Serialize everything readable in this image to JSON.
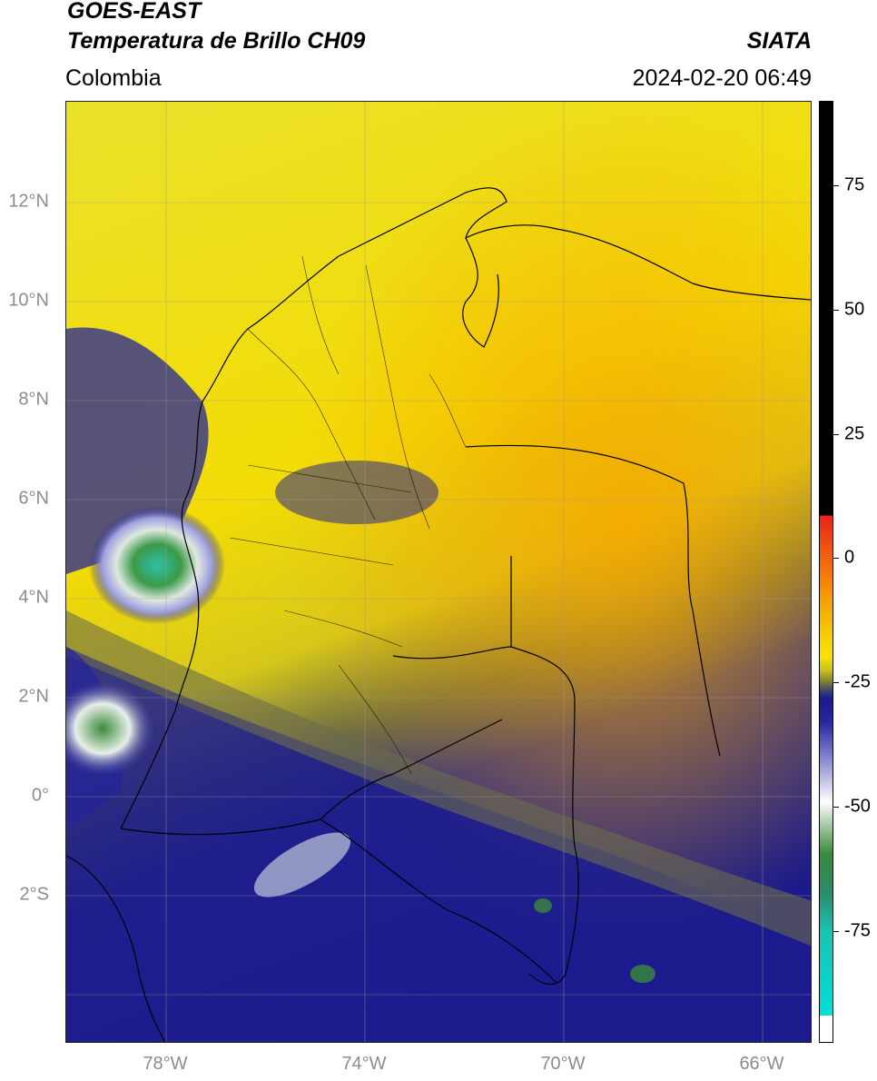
{
  "header": {
    "satellite": "GOES-EAST",
    "product": "Temperatura de Brillo CH09",
    "region": "Colombia",
    "agency": "SIATA",
    "datetime": "2024-02-20 06:49"
  },
  "map": {
    "lat_labels": [
      "12°N",
      "10°N",
      "8°N",
      "6°N",
      "4°N",
      "2°N",
      "0°",
      "2°S"
    ],
    "lon_labels": [
      "78°W",
      "74°W",
      "70°W",
      "66°W"
    ]
  },
  "colorbar": {
    "ticks": [
      "75",
      "50",
      "25",
      "0",
      "-25",
      "-50",
      "-75"
    ],
    "colors": {
      "black": "#000000",
      "red": "#e8231c",
      "orange": "#f6a000",
      "yellow": "#f7e300",
      "olive": "#8a8a2a",
      "navy": "#1a1a8c",
      "white": "#ffffff",
      "green": "#3a8a3a",
      "cyan": "#00e0d8"
    }
  }
}
